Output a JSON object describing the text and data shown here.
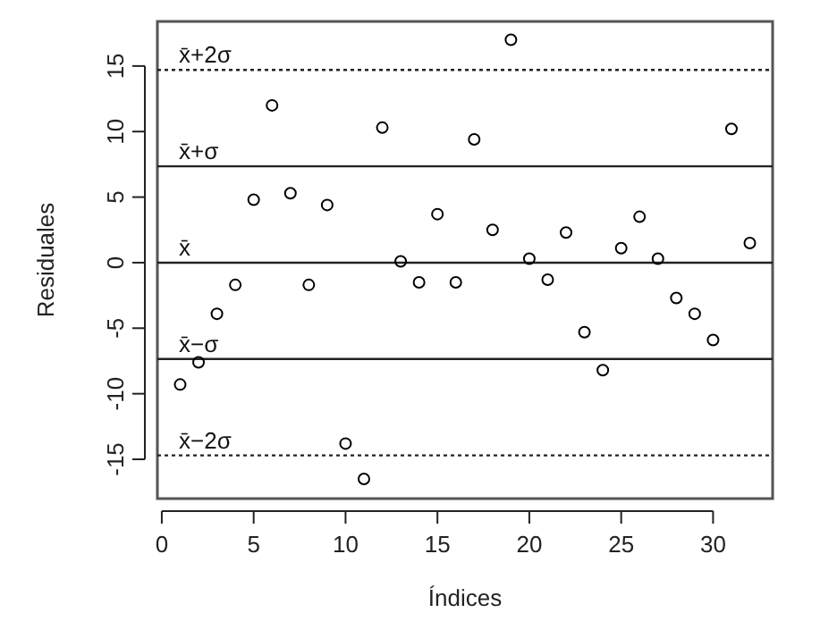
{
  "chart_data": {
    "type": "scatter",
    "xlabel": "Índices",
    "ylabel": "Residuales",
    "marker": "circle",
    "color": "#000000",
    "x": [
      1,
      2,
      3,
      4,
      5,
      6,
      7,
      8,
      9,
      10,
      11,
      12,
      13,
      14,
      15,
      16,
      17,
      18,
      19,
      20,
      21,
      22,
      23,
      24,
      25,
      26,
      27,
      28,
      29,
      30,
      31,
      32
    ],
    "values": [
      -9.3,
      -7.6,
      -3.9,
      -1.7,
      4.8,
      12.0,
      5.3,
      -1.7,
      4.4,
      -13.8,
      -16.5,
      10.3,
      0.1,
      -1.5,
      3.7,
      -1.5,
      9.4,
      2.5,
      17.0,
      0.3,
      -1.3,
      2.3,
      -5.3,
      -8.2,
      1.1,
      3.5,
      0.3,
      -2.7,
      -3.9,
      -5.9,
      10.2,
      1.5
    ],
    "xlim": [
      -0.24,
      33.24
    ],
    "ylim": [
      -18,
      18.4
    ],
    "xticks": [
      0,
      5,
      10,
      15,
      20,
      25,
      30
    ],
    "yticks": [
      -15,
      -10,
      -5,
      0,
      5,
      10,
      15
    ],
    "ref_lines": [
      {
        "axis": "y",
        "value": 14.7,
        "label": "x̄+2σ",
        "line_style": "dotted"
      },
      {
        "axis": "y",
        "value": 7.35,
        "label": "x̄+σ",
        "line_style": "solid"
      },
      {
        "axis": "y",
        "value": 0,
        "label": "x̄",
        "line_style": "solid"
      },
      {
        "axis": "y",
        "value": -7.35,
        "label": "x̄−σ",
        "line_style": "solid"
      },
      {
        "axis": "y",
        "value": -14.7,
        "label": "x̄−2σ",
        "line_style": "dotted"
      }
    ]
  }
}
